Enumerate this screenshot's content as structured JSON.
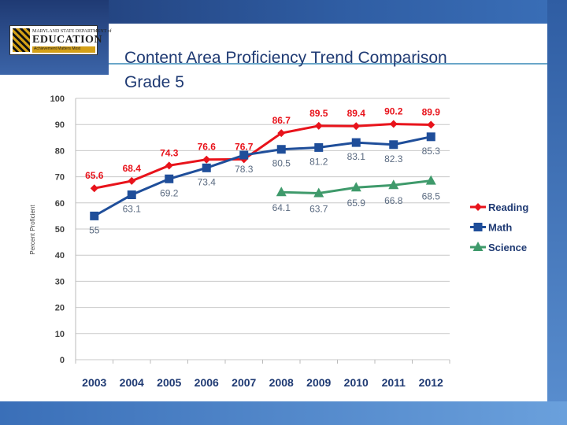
{
  "header": {
    "title": "Content Area Proficiency Trend Comparison",
    "subtitle": "Grade 5",
    "logo_line1": "MARYLAND STATE DEPARTMENT of",
    "logo_line2": "EDUCATION",
    "logo_tagline": "Achievement Matters Most"
  },
  "colors": {
    "reading": "#e8131b",
    "math": "#1f4e9a",
    "science": "#3f9a6b"
  },
  "chart_data": {
    "type": "line",
    "title": "Content Area Proficiency Trend Comparison",
    "subtitle": "Grade 5",
    "xlabel": "",
    "ylabel": "Percent Proficient",
    "ylim": [
      0,
      100
    ],
    "yticks": [
      "0",
      "10",
      "20",
      "30",
      "40",
      "50",
      "60",
      "70",
      "80",
      "90",
      "100"
    ],
    "categories": [
      "2003",
      "2004",
      "2005",
      "2006",
      "2007",
      "2008",
      "2009",
      "2010",
      "2011",
      "2012"
    ],
    "legend_position": "right",
    "grid": true,
    "series": [
      {
        "name": "Reading",
        "marker": "diamond",
        "values": [
          65.6,
          68.4,
          74.3,
          76.6,
          76.7,
          86.7,
          89.5,
          89.4,
          90.2,
          89.9
        ],
        "labels": [
          "65.6",
          "68.4",
          "74.3",
          "76.6",
          "76.7",
          "86.7",
          "89.5",
          "89.4",
          "90.2",
          "89.9"
        ]
      },
      {
        "name": "Math",
        "marker": "square",
        "values": [
          55,
          63.1,
          69.2,
          73.4,
          78.3,
          80.5,
          81.2,
          83.1,
          82.3,
          85.3
        ],
        "labels": [
          "55",
          "63.1",
          "69.2",
          "73.4",
          "78.3",
          "80.5",
          "81.2",
          "83.1",
          "82.3",
          "85.3"
        ]
      },
      {
        "name": "Science",
        "marker": "triangle",
        "values": [
          null,
          null,
          null,
          null,
          null,
          64.1,
          63.7,
          65.9,
          66.8,
          68.5
        ],
        "labels": [
          null,
          null,
          null,
          null,
          null,
          "64.1",
          "63.7",
          "65.9",
          "66.8",
          "68.5"
        ]
      }
    ]
  }
}
